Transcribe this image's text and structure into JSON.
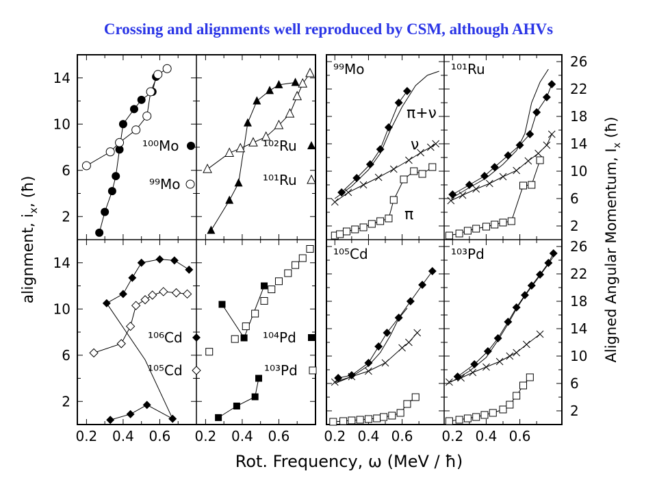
{
  "title": "Crossing and alignments well reproduced by CSM, although AHVs",
  "colors": {
    "title": "#2a35e6",
    "ink": "#000000",
    "background": "#ffffff"
  },
  "chart_data": [
    {
      "type": "scatter",
      "panel": "top-left",
      "xlim": [
        0.15,
        0.8
      ],
      "ylim": [
        0,
        16
      ],
      "yticks": [
        "2",
        "6",
        "10",
        "14"
      ],
      "series": [
        {
          "name": "100Mo",
          "label": "¹⁰⁰Mo",
          "marker": "filled-circle",
          "x": [
            0.27,
            0.3,
            0.34,
            0.36,
            0.38,
            0.4,
            0.46,
            0.5,
            0.56,
            0.58
          ],
          "y": [
            0.6,
            2.4,
            4.2,
            5.5,
            7.8,
            10.0,
            11.3,
            12.1,
            12.8,
            14.1
          ]
        },
        {
          "name": "99Mo",
          "label": "⁹⁹Mo",
          "marker": "open-circle",
          "x": [
            0.2,
            0.33,
            0.38,
            0.47,
            0.53,
            0.55,
            0.59,
            0.64
          ],
          "y": [
            6.4,
            7.6,
            8.4,
            9.5,
            10.7,
            12.8,
            14.3,
            14.8
          ]
        }
      ]
    },
    {
      "type": "scatter",
      "panel": "top-mid",
      "xlim": [
        0.15,
        0.8
      ],
      "ylim": [
        0,
        16
      ],
      "series": [
        {
          "name": "102Ru",
          "label": "¹⁰²Ru",
          "marker": "filled-triangle",
          "x": [
            0.23,
            0.33,
            0.38,
            0.43,
            0.48,
            0.55,
            0.6,
            0.69
          ],
          "y": [
            0.8,
            3.4,
            4.9,
            10.1,
            12.0,
            12.9,
            13.4,
            13.6
          ]
        },
        {
          "name": "101Ru",
          "label": "¹⁰¹Ru",
          "marker": "open-triangle",
          "x": [
            0.21,
            0.33,
            0.39,
            0.46,
            0.53,
            0.6,
            0.66,
            0.7,
            0.73,
            0.77
          ],
          "y": [
            6.1,
            7.5,
            7.9,
            8.4,
            8.9,
            9.9,
            10.9,
            12.4,
            13.5,
            14.4
          ]
        }
      ]
    },
    {
      "type": "scatter",
      "panel": "bottom-left",
      "xlim": [
        0.15,
        0.8
      ],
      "ylim": [
        0,
        16
      ],
      "yticks": [
        "2",
        "6",
        "10",
        "14"
      ],
      "series": [
        {
          "name": "106Cd",
          "label": "¹⁰⁶Cd",
          "marker": "filled-diamond",
          "x": [
            0.31,
            0.4,
            0.45,
            0.5,
            0.6,
            0.68,
            0.76
          ],
          "y": [
            10.5,
            11.3,
            12.7,
            14.0,
            14.3,
            14.2,
            13.4
          ]
        },
        {
          "name": "105Cd",
          "label": "¹⁰⁵Cd",
          "marker": "open-diamond",
          "x": [
            0.24,
            0.39,
            0.44,
            0.47,
            0.52,
            0.56,
            0.62,
            0.69,
            0.75
          ],
          "y": [
            6.2,
            7.0,
            8.5,
            10.3,
            10.8,
            11.2,
            11.5,
            11.4,
            11.3
          ]
        },
        {
          "name": "106Cd-low",
          "marker": "filled-diamond",
          "x": [
            0.33,
            0.44,
            0.53,
            0.67
          ],
          "y": [
            0.4,
            0.9,
            1.7,
            0.5
          ]
        }
      ],
      "connector": {
        "x": [
          0.31,
          0.52,
          0.67
        ],
        "y": [
          10.5,
          5.6,
          0.5
        ]
      }
    },
    {
      "type": "scatter",
      "panel": "bottom-mid",
      "xlim": [
        0.15,
        0.8
      ],
      "ylim": [
        0,
        16
      ],
      "series": [
        {
          "name": "104Pd",
          "label": "¹⁰⁴Pd",
          "marker": "filled-square",
          "x": [
            0.27,
            0.29,
            0.37,
            0.41,
            0.47,
            0.49,
            0.52
          ],
          "y": [
            0.6,
            10.4,
            1.6,
            7.5,
            2.4,
            4.0,
            12.0
          ]
        },
        {
          "name": "103Pd",
          "label": "¹⁰³Pd",
          "marker": "open-square",
          "x": [
            0.22,
            0.36,
            0.42,
            0.47,
            0.52,
            0.56,
            0.6,
            0.65,
            0.69,
            0.73,
            0.77
          ],
          "y": [
            6.3,
            7.4,
            8.5,
            9.6,
            10.7,
            11.7,
            12.4,
            13.1,
            13.8,
            14.4,
            15.2
          ]
        }
      ],
      "lines": [
        {
          "x": [
            0.27,
            0.37,
            0.47,
            0.49
          ],
          "y": [
            0.6,
            1.6,
            2.4,
            4.0
          ]
        },
        {
          "x": [
            0.29,
            0.41,
            0.52
          ],
          "y": [
            10.4,
            7.5,
            12.0
          ]
        }
      ]
    },
    {
      "type": "scatter",
      "panel": "top-right-a",
      "nucleus": "⁹⁹Mo",
      "xlim": [
        0.15,
        0.85
      ],
      "ylim": [
        0,
        27
      ],
      "annotations": [
        "π+ν",
        "ν",
        "π"
      ],
      "series": [
        {
          "name": "π+ν",
          "marker": "filled-diamond",
          "x": [
            0.24,
            0.33,
            0.41,
            0.47,
            0.52,
            0.58,
            0.63
          ],
          "y": [
            6.9,
            9.0,
            11.0,
            13.2,
            16.4,
            20.0,
            21.7
          ]
        },
        {
          "name": "ν",
          "marker": "cross",
          "x": [
            0.2,
            0.28,
            0.37,
            0.46,
            0.55,
            0.64,
            0.71,
            0.77,
            0.8
          ],
          "y": [
            5.5,
            6.9,
            8.0,
            9.1,
            10.3,
            11.6,
            12.7,
            13.5,
            14.0
          ]
        },
        {
          "name": "π",
          "marker": "open-square",
          "x": [
            0.2,
            0.23,
            0.27,
            0.32,
            0.37,
            0.42,
            0.47,
            0.52,
            0.55,
            0.61,
            0.67,
            0.72,
            0.78
          ],
          "y": [
            0.6,
            0.8,
            1.2,
            1.5,
            1.8,
            2.3,
            2.7,
            3.1,
            5.8,
            8.8,
            10.0,
            9.6,
            10.6
          ]
        }
      ],
      "model_curve": {
        "x": [
          0.2,
          0.3,
          0.4,
          0.47,
          0.53,
          0.6,
          0.68,
          0.75,
          0.82
        ],
        "y": [
          6.0,
          7.8,
          10.2,
          12.6,
          16.0,
          19.4,
          22.5,
          24.0,
          24.6
        ]
      }
    },
    {
      "type": "scatter",
      "panel": "top-right-b",
      "nucleus": "¹⁰¹Ru",
      "xlim": [
        0.15,
        0.85
      ],
      "ylim": [
        0,
        27
      ],
      "yticks": [
        "2",
        "6",
        "10",
        "14",
        "18",
        "22",
        "26"
      ],
      "y_axis_side": "right",
      "series": [
        {
          "name": "π+ν",
          "marker": "filled-diamond",
          "x": [
            0.2,
            0.3,
            0.39,
            0.45,
            0.53,
            0.6,
            0.66,
            0.7,
            0.76,
            0.79
          ],
          "y": [
            6.6,
            8.0,
            9.3,
            10.6,
            12.3,
            13.8,
            15.4,
            18.6,
            20.8,
            22.7
          ]
        },
        {
          "name": "ν",
          "marker": "cross",
          "x": [
            0.19,
            0.26,
            0.34,
            0.42,
            0.5,
            0.58,
            0.65,
            0.71,
            0.76,
            0.79
          ],
          "y": [
            5.7,
            6.5,
            7.4,
            8.2,
            9.2,
            10.1,
            11.5,
            12.6,
            13.8,
            15.4
          ]
        },
        {
          "name": "π",
          "marker": "open-square",
          "x": [
            0.18,
            0.24,
            0.29,
            0.34,
            0.4,
            0.45,
            0.5,
            0.55,
            0.62,
            0.67,
            0.72
          ],
          "y": [
            0.6,
            0.9,
            1.3,
            1.6,
            1.9,
            2.2,
            2.5,
            2.7,
            7.9,
            8.0,
            11.6
          ]
        }
      ],
      "model_curve": {
        "x": [
          0.19,
          0.3,
          0.4,
          0.5,
          0.58,
          0.63,
          0.67,
          0.72,
          0.77
        ],
        "y": [
          6.0,
          7.6,
          9.0,
          11.0,
          13.0,
          15.5,
          20.0,
          23.0,
          24.9
        ]
      }
    },
    {
      "type": "scatter",
      "panel": "bottom-right-a",
      "nucleus": "¹⁰⁵Cd",
      "xlim": [
        0.15,
        0.85
      ],
      "ylim": [
        0,
        27
      ],
      "series": [
        {
          "name": "π+ν",
          "marker": "filled-diamond",
          "x": [
            0.22,
            0.3,
            0.4,
            0.46,
            0.51,
            0.58,
            0.65,
            0.72,
            0.78
          ],
          "y": [
            6.8,
            7.2,
            9.0,
            11.4,
            13.4,
            15.6,
            18.0,
            20.4,
            22.4
          ]
        },
        {
          "name": "ν",
          "marker": "cross",
          "x": [
            0.2,
            0.3,
            0.4,
            0.5,
            0.6,
            0.64,
            0.69
          ],
          "y": [
            6.2,
            7.0,
            7.8,
            9.0,
            11.2,
            12.0,
            13.4
          ]
        },
        {
          "name": "π",
          "marker": "open-square",
          "x": [
            0.19,
            0.25,
            0.3,
            0.35,
            0.4,
            0.45,
            0.49,
            0.54,
            0.59,
            0.63,
            0.68
          ],
          "y": [
            0.4,
            0.5,
            0.6,
            0.7,
            0.8,
            0.9,
            1.1,
            1.3,
            1.7,
            3.0,
            4.0
          ]
        }
      ],
      "model_curve": {
        "x": [
          0.2,
          0.3,
          0.4,
          0.47,
          0.53,
          0.58,
          0.63
        ],
        "y": [
          6.0,
          7.0,
          8.6,
          10.5,
          13.0,
          15.5,
          17.0
        ]
      }
    },
    {
      "type": "scatter",
      "panel": "bottom-right-b",
      "nucleus": "¹⁰³Pd",
      "xlim": [
        0.15,
        0.85
      ],
      "ylim": [
        0,
        27
      ],
      "yticks": [
        "2",
        "6",
        "10",
        "14",
        "18",
        "22",
        "26"
      ],
      "y_axis_side": "right",
      "series": [
        {
          "name": "π+ν",
          "marker": "filled-diamond",
          "x": [
            0.23,
            0.33,
            0.41,
            0.47,
            0.53,
            0.58,
            0.63,
            0.67,
            0.72,
            0.77,
            0.8
          ],
          "y": [
            7.0,
            8.8,
            10.7,
            12.6,
            15.0,
            17.1,
            18.9,
            20.3,
            21.9,
            23.6,
            25.0
          ]
        },
        {
          "name": "ν",
          "marker": "cross",
          "x": [
            0.18,
            0.25,
            0.32,
            0.4,
            0.48,
            0.54,
            0.58,
            0.64,
            0.72
          ],
          "y": [
            6.2,
            6.8,
            7.6,
            8.4,
            9.2,
            10.0,
            10.5,
            11.7,
            13.2
          ]
        },
        {
          "name": "π",
          "marker": "open-square",
          "x": [
            0.18,
            0.24,
            0.29,
            0.34,
            0.39,
            0.44,
            0.5,
            0.54,
            0.58,
            0.62,
            0.66
          ],
          "y": [
            0.5,
            0.7,
            0.9,
            1.1,
            1.4,
            1.7,
            2.2,
            2.9,
            4.2,
            5.7,
            6.9
          ]
        }
      ],
      "model_curve": {
        "x": [
          0.19,
          0.3,
          0.4,
          0.47,
          0.53,
          0.58,
          0.63,
          0.7,
          0.76,
          0.81
        ],
        "y": [
          6.2,
          7.8,
          9.8,
          12.3,
          14.7,
          16.9,
          18.8,
          21.1,
          23.1,
          24.9
        ]
      }
    }
  ],
  "axes": {
    "left_ylabel": "alignment, i",
    "left_ylabel_sub": "x",
    "left_ylabel_unit": ", (ħ)",
    "right_ylabel": "Aligned Angular Momentum, I",
    "right_ylabel_sub": "x",
    "right_ylabel_unit": " (ħ)",
    "xlabel": "Rot. Frequency, ω (MeV / ħ)",
    "xtick_labels": [
      "0.2",
      "0.4",
      "0.6"
    ]
  }
}
